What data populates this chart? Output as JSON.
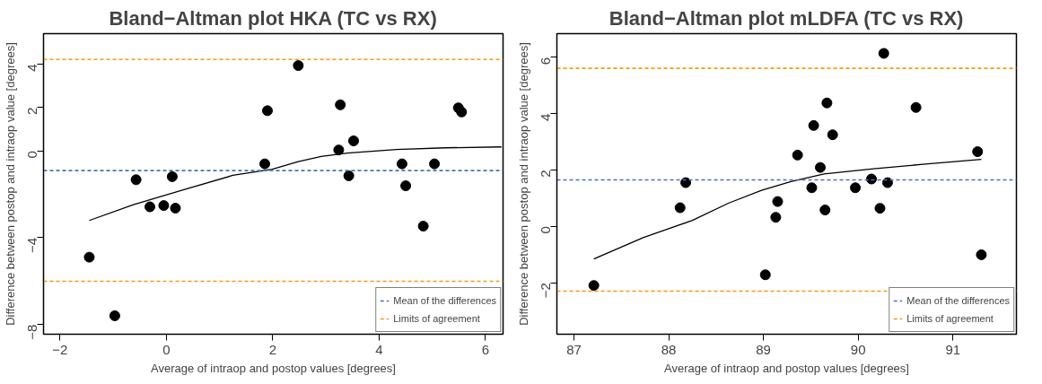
{
  "chart_data": [
    {
      "type": "scatter",
      "title": "Bland−Altman plot HKA (TC vs RX)",
      "xlabel": "Average of intraop and postop values [degrees]",
      "ylabel": "Difference between postop and intraop value [degrees]",
      "xlim": [
        -2.31,
        6.33
      ],
      "ylim": [
        -8.45,
        5.4
      ],
      "xticks": [
        -2,
        0,
        2,
        4,
        6
      ],
      "yticks": [
        -8,
        -4,
        0,
        2,
        4
      ],
      "grid": false,
      "legend": "bottom right",
      "marker": "circle",
      "series": [
        {
          "color": "#000000",
          "x": [
            -1.45,
            -0.97,
            -0.57,
            -0.31,
            -0.05,
            0.11,
            0.17,
            1.85,
            1.9,
            2.48,
            3.27,
            3.24,
            3.52,
            3.43,
            4.43,
            4.5,
            4.83,
            5.04,
            5.49,
            5.55
          ],
          "values": [
            -4.9,
            -7.6,
            -1.33,
            -2.58,
            -2.52,
            -1.19,
            -2.64,
            -0.6,
            1.85,
            3.93,
            2.12,
            0.04,
            0.46,
            -1.15,
            -0.6,
            -1.61,
            -3.47,
            -0.6,
            1.98,
            1.79
          ]
        },
        {
          "type": "line",
          "marker": "none",
          "color": "#000000",
          "x": [
            -1.45,
            -0.62,
            0.33,
            1.25,
            1.99,
            2.48,
            2.91,
            3.4,
            4.32,
            5.25,
            6.3
          ],
          "values": [
            -3.21,
            -2.48,
            -1.79,
            -1.13,
            -0.85,
            -0.5,
            -0.26,
            -0.1,
            0.06,
            0.14,
            0.18
          ]
        }
      ],
      "ref_lines": [
        {
          "axis": "y",
          "value": -0.91,
          "label": "Mean of the differences",
          "color": "#4a72b8",
          "line_style": "dashed"
        },
        {
          "axis": "y",
          "value": 4.21,
          "label": "Limits of agreement",
          "color": "#ff9900",
          "line_style": "dashed"
        },
        {
          "axis": "y",
          "value": -6.01,
          "color": "#ff9900",
          "line_style": "dashed"
        }
      ]
    },
    {
      "type": "scatter",
      "title": "Bland−Altman plot mLDFA (TC vs RX)",
      "xlabel": "Average of intraop and postop values [degrees]",
      "ylabel": "Difference between postop and intraop value [degrees]",
      "xlim": [
        86.82,
        91.67
      ],
      "ylim": [
        -3.83,
        6.84
      ],
      "xticks": [
        87,
        88,
        89,
        90,
        91
      ],
      "yticks": [
        -2,
        0,
        2,
        4,
        6
      ],
      "grid": false,
      "legend": "bottom right",
      "marker": "circle",
      "series": [
        {
          "color": "#000000",
          "x": [
            87.21,
            88.12,
            88.18,
            89.02,
            89.13,
            89.15,
            89.36,
            89.51,
            89.53,
            89.6,
            89.65,
            89.67,
            89.73,
            89.97,
            90.14,
            90.23,
            90.27,
            90.31,
            90.61,
            91.26,
            91.3
          ],
          "values": [
            -2.1,
            0.66,
            1.55,
            -1.72,
            0.32,
            0.88,
            2.53,
            1.37,
            3.58,
            2.09,
            0.58,
            4.38,
            3.25,
            1.37,
            1.68,
            0.64,
            6.14,
            1.55,
            4.22,
            2.65,
            -1.01
          ]
        },
        {
          "type": "line",
          "marker": "none",
          "color": "#000000",
          "x": [
            87.21,
            87.73,
            88.25,
            88.63,
            88.98,
            89.29,
            89.64,
            90.16,
            90.68,
            91.3
          ],
          "values": [
            -1.16,
            -0.4,
            0.21,
            0.82,
            1.28,
            1.59,
            1.86,
            2.04,
            2.2,
            2.38
          ]
        }
      ],
      "ref_lines": [
        {
          "axis": "y",
          "value": 1.65,
          "label": "Mean of the differences",
          "color": "#4a72b8",
          "line_style": "dashed"
        },
        {
          "axis": "y",
          "value": 5.61,
          "label": "Limits of agreement",
          "color": "#ff9900",
          "line_style": "dashed"
        },
        {
          "axis": "y",
          "value": -2.3,
          "color": "#ff9900",
          "line_style": "dashed"
        }
      ]
    }
  ]
}
